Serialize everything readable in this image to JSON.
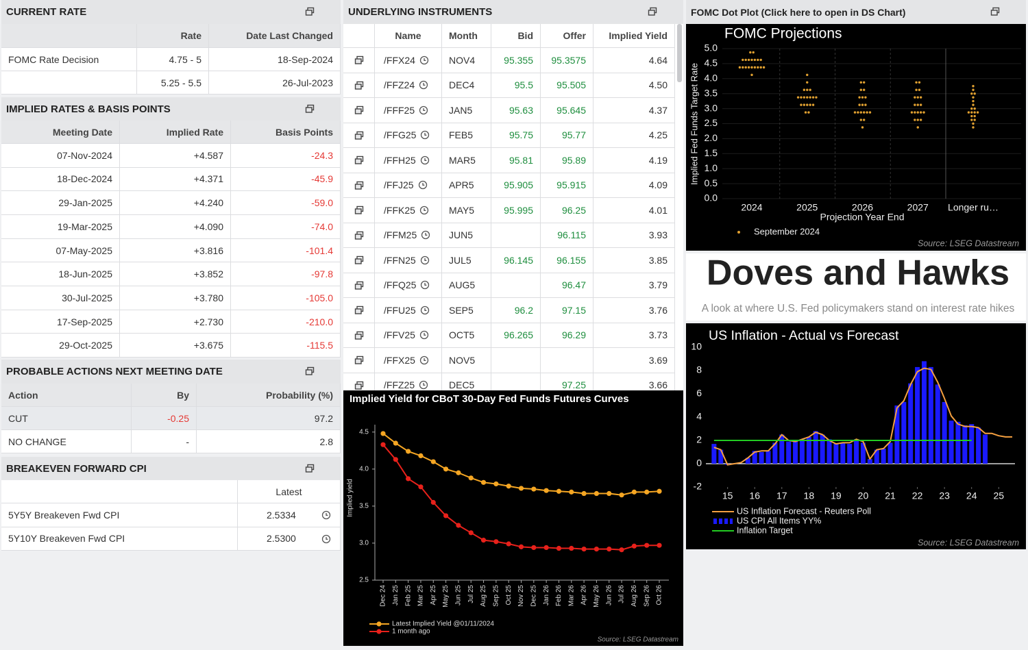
{
  "current_rate": {
    "title": "CURRENT RATE",
    "columns": [
      "Rate",
      "Date Last Changed"
    ],
    "rows": [
      {
        "label": "FOMC Rate Decision",
        "rate": "4.75 - 5",
        "date": "18-Sep-2024"
      },
      {
        "rate": "5.25 - 5.5",
        "date": "26-Jul-2023"
      }
    ]
  },
  "implied_rates": {
    "title": "IMPLIED RATES & BASIS POINTS",
    "columns": [
      "Meeting Date",
      "Implied Rate",
      "Basis Points"
    ],
    "rows": [
      [
        "07-Nov-2024",
        "+4.587",
        "-24.3"
      ],
      [
        "18-Dec-2024",
        "+4.371",
        "-45.9"
      ],
      [
        "29-Jan-2025",
        "+4.240",
        "-59.0"
      ],
      [
        "19-Mar-2025",
        "+4.090",
        "-74.0"
      ],
      [
        "07-May-2025",
        "+3.816",
        "-101.4"
      ],
      [
        "18-Jun-2025",
        "+3.852",
        "-97.8"
      ],
      [
        "30-Jul-2025",
        "+3.780",
        "-105.0"
      ],
      [
        "17-Sep-2025",
        "+2.730",
        "-210.0"
      ],
      [
        "29-Oct-2025",
        "+3.675",
        "-115.5"
      ]
    ]
  },
  "probable_actions": {
    "title": "PROBABLE ACTIONS NEXT MEETING DATE",
    "columns": [
      "Action",
      "By",
      "Probability (%)"
    ],
    "rows": [
      [
        "CUT",
        "-0.25",
        "97.2"
      ],
      [
        "NO CHANGE",
        "-",
        "2.8"
      ]
    ]
  },
  "breakeven": {
    "title": "BREAKEVEN FORWARD CPI",
    "columns": [
      "Latest"
    ],
    "rows": [
      [
        "5Y5Y Breakeven Fwd CPI",
        "2.5334"
      ],
      [
        "5Y10Y Breakeven Fwd CPI",
        "2.5300"
      ]
    ]
  },
  "instruments": {
    "title": "UNDERLYING INSTRUMENTS",
    "columns": [
      "Name",
      "Month",
      "Bid",
      "Offer",
      "Implied Yield"
    ],
    "rows": [
      [
        "/FFX24",
        "NOV4",
        "95.355",
        "95.3575",
        "4.64"
      ],
      [
        "/FFZ24",
        "DEC4",
        "95.5",
        "95.505",
        "4.50"
      ],
      [
        "/FFF25",
        "JAN5",
        "95.63",
        "95.645",
        "4.37"
      ],
      [
        "/FFG25",
        "FEB5",
        "95.75",
        "95.77",
        "4.25"
      ],
      [
        "/FFH25",
        "MAR5",
        "95.81",
        "95.89",
        "4.19"
      ],
      [
        "/FFJ25",
        "APR5",
        "95.905",
        "95.915",
        "4.09"
      ],
      [
        "/FFK25",
        "MAY5",
        "95.995",
        "96.25",
        "4.01"
      ],
      [
        "/FFM25",
        "JUN5",
        null,
        "96.115",
        "3.93"
      ],
      [
        "/FFN25",
        "JUL5",
        "96.145",
        "96.155",
        "3.85"
      ],
      [
        "/FFQ25",
        "AUG5",
        null,
        "96.47",
        "3.79"
      ],
      [
        "/FFU25",
        "SEP5",
        "96.2",
        "97.15",
        "3.76"
      ],
      [
        "/FFV25",
        "OCT5",
        "96.265",
        "96.29",
        "3.73"
      ],
      [
        "/FFX25",
        "NOV5",
        null,
        null,
        "3.69"
      ],
      [
        "/FFZ25",
        "DEC5",
        null,
        "97.25",
        "3.66"
      ]
    ]
  },
  "dot_plot_header": "FOMC Dot Plot (Click here to open in DS Chart)",
  "banner": {
    "title": "Doves and Hawks",
    "subtitle": "A look at where U.S. Fed policymakers stand on interest rate hikes"
  },
  "chart_data": [
    {
      "type": "line",
      "title": "Implied Yield for CBoT 30-Day Fed Funds Futures Curves",
      "y_label": "Implied yield",
      "source": "Source: LSEG Datastream",
      "categories": [
        "Dec 24",
        "Jan 25",
        "Feb 25",
        "Mar 25",
        "Apr 25",
        "May 25",
        "Jun 25",
        "Jul 25",
        "Aug 25",
        "Sep 25",
        "Oct 25",
        "Nov 25",
        "Dec 25",
        "Jan 26",
        "Feb 26",
        "Mar 26",
        "Apr 26",
        "May 26",
        "Jun 26",
        "Jul 26",
        "Aug 26",
        "Sep 26",
        "Oct 26"
      ],
      "ylim": [
        2.5,
        4.6
      ],
      "yticks": [
        2.5,
        {
          "value": 3,
          "label": "3.0"
        },
        3.5,
        {
          "value": 4,
          "label": "4.0"
        },
        4.5
      ],
      "series": [
        {
          "name": "Latest Implied Yield @01/11/2024",
          "color": "#f5a623",
          "values": [
            4.48,
            4.35,
            4.24,
            4.18,
            4.1,
            4.0,
            3.95,
            3.88,
            3.82,
            3.8,
            3.77,
            3.74,
            3.73,
            3.71,
            3.7,
            3.69,
            3.67,
            3.67,
            3.67,
            3.65,
            3.69,
            3.69,
            3.7
          ]
        },
        {
          "name": "1 month ago",
          "color": "#e8211b",
          "values": [
            4.33,
            4.13,
            3.87,
            3.76,
            3.55,
            3.37,
            3.24,
            3.14,
            3.04,
            3.02,
            2.99,
            2.95,
            2.94,
            2.94,
            2.93,
            2.93,
            2.92,
            2.92,
            2.92,
            2.91,
            2.96,
            2.97,
            2.97
          ]
        }
      ]
    },
    {
      "type": "scatter",
      "title": "FOMC Projections",
      "x_label": "Projection Year End",
      "y_label": "Implied Fed Funds Target Rate",
      "source": "Source: LSEG Datastream",
      "categories": [
        "2024",
        "2025",
        "2026",
        "2027",
        "Longer ru…"
      ],
      "ylim": [
        0,
        5
      ],
      "yticks": [
        {
          "value": 0,
          "label": "0.0"
        },
        0.5,
        {
          "value": 1,
          "label": "1.0"
        },
        1.5,
        {
          "value": 2,
          "label": "2.0"
        },
        2.5,
        {
          "value": 3,
          "label": "3.0"
        },
        3.5,
        {
          "value": 4,
          "label": "4.0"
        },
        4.5,
        {
          "value": 5,
          "label": "5.0"
        }
      ],
      "grid": true,
      "series": [
        {
          "name": "September 2024",
          "color": "#e0a030",
          "values": [
            [
              4.875,
              4.875,
              4.625,
              4.625,
              4.625,
              4.625,
              4.625,
              4.625,
              4.625,
              4.375,
              4.375,
              4.375,
              4.375,
              4.375,
              4.375,
              4.375,
              4.375,
              4.375,
              4.125
            ],
            [
              4.125,
              3.875,
              3.625,
              3.625,
              3.625,
              3.375,
              3.375,
              3.375,
              3.375,
              3.375,
              3.375,
              3.375,
              3.125,
              3.125,
              3.125,
              3.125,
              3.125,
              2.875,
              2.875
            ],
            [
              3.875,
              3.875,
              3.625,
              3.625,
              3.375,
              3.375,
              3.375,
              3.125,
              3.125,
              3.125,
              2.875,
              2.875,
              2.875,
              2.875,
              2.875,
              2.875,
              2.625,
              2.625,
              2.375
            ],
            [
              3.875,
              3.875,
              3.625,
              3.625,
              3.375,
              3.375,
              3.375,
              3.125,
              3.125,
              3.125,
              2.875,
              2.875,
              2.875,
              2.875,
              2.875,
              2.625,
              2.625,
              2.625,
              2.375
            ],
            [
              3.75,
              3.625,
              3.5,
              3.5,
              3.375,
              3.25,
              3.125,
              3.0,
              3.0,
              2.875,
              2.875,
              2.875,
              2.875,
              2.75,
              2.75,
              2.625,
              2.625,
              2.5,
              2.375
            ]
          ]
        }
      ]
    },
    {
      "type": "bar",
      "title": "US Inflation - Actual vs Forecast",
      "source": "Source: LSEG Datastream",
      "xlim": [
        2014.2,
        2025.6
      ],
      "xticks": [
        {
          "value": 2015,
          "label": "15"
        },
        {
          "value": 2016,
          "label": "16"
        },
        {
          "value": 2017,
          "label": "17"
        },
        {
          "value": 2018,
          "label": "18"
        },
        {
          "value": 2019,
          "label": "19"
        },
        {
          "value": 2020,
          "label": "20"
        },
        {
          "value": 2021,
          "label": "21"
        },
        {
          "value": 2022,
          "label": "22"
        },
        {
          "value": 2023,
          "label": "23"
        },
        {
          "value": 2024,
          "label": "24"
        },
        {
          "value": 2025,
          "label": "25"
        }
      ],
      "ylim": [
        -2,
        10
      ],
      "yticks": [
        -2,
        0,
        2,
        4,
        6,
        8,
        10
      ],
      "series": [
        {
          "name": "US Inflation Forecast - Reuters Poll",
          "type": "line",
          "color": "#f5a040",
          "x": [
            2014.5,
            2014.75,
            2015,
            2015.25,
            2015.5,
            2015.75,
            2016,
            2016.25,
            2016.5,
            2016.75,
            2017,
            2017.25,
            2017.5,
            2017.75,
            2018,
            2018.25,
            2018.5,
            2018.75,
            2019,
            2019.25,
            2019.5,
            2019.75,
            2020,
            2020.25,
            2020.5,
            2020.75,
            2021,
            2021.25,
            2021.5,
            2021.75,
            2022,
            2022.25,
            2022.5,
            2022.75,
            2023,
            2023.25,
            2023.5,
            2023.75,
            2024,
            2024.25,
            2024.5,
            2024.75,
            2025,
            2025.25,
            2025.5
          ],
          "values": [
            1.4,
            1.2,
            -0.1,
            0.0,
            0.1,
            0.5,
            1.0,
            1.1,
            1.1,
            1.7,
            2.5,
            2.0,
            1.9,
            2.1,
            2.3,
            2.7,
            2.5,
            2.0,
            1.7,
            1.8,
            1.8,
            2.1,
            1.9,
            0.4,
            1.2,
            1.3,
            1.9,
            4.8,
            5.4,
            6.8,
            7.9,
            8.2,
            8.1,
            7.0,
            5.6,
            4.1,
            3.4,
            3.2,
            3.2,
            3.1,
            2.6,
            2.6,
            2.4,
            2.3,
            2.3
          ]
        },
        {
          "name": "US CPI All Items YY%",
          "type": "bar",
          "color": "#1a1aff",
          "x": [
            2014.5,
            2014.75,
            2015,
            2015.25,
            2015.5,
            2015.75,
            2016,
            2016.25,
            2016.5,
            2016.75,
            2017,
            2017.25,
            2017.5,
            2017.75,
            2018,
            2018.25,
            2018.5,
            2018.75,
            2019,
            2019.25,
            2019.5,
            2019.75,
            2020,
            2020.25,
            2020.5,
            2020.75,
            2021,
            2021.25,
            2021.5,
            2021.75,
            2022,
            2022.25,
            2022.5,
            2022.75,
            2023,
            2023.25,
            2023.5,
            2023.75,
            2024,
            2024.25,
            2024.5
          ],
          "values": [
            1.7,
            1.2,
            -0.1,
            0.0,
            0.0,
            0.5,
            1.1,
            1.0,
            1.1,
            1.8,
            2.5,
            1.9,
            2.0,
            2.1,
            2.3,
            2.8,
            2.5,
            2.1,
            1.7,
            1.8,
            1.7,
            2.1,
            1.8,
            0.4,
            1.2,
            1.3,
            1.8,
            5.0,
            5.3,
            6.9,
            8.3,
            8.8,
            8.3,
            6.8,
            5.3,
            3.7,
            3.6,
            3.3,
            3.4,
            3.1,
            2.5
          ]
        },
        {
          "name": "Inflation Target",
          "type": "line",
          "color": "#22cc22",
          "x": [
            2014.5,
            2024
          ],
          "values": [
            2,
            2
          ]
        }
      ]
    }
  ]
}
